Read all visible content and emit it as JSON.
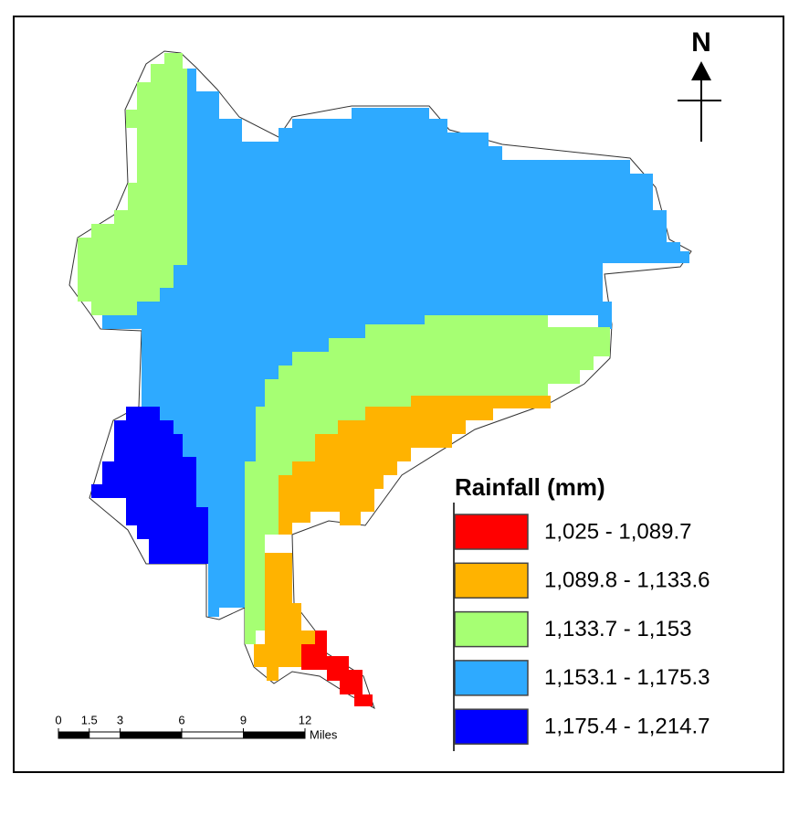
{
  "north_label": "N",
  "legend": {
    "title": "Rainfall (mm)",
    "items": [
      {
        "label": "1,025 - 1,089.7",
        "color": "#ff0000"
      },
      {
        "label": "1,089.8 - 1,133.6",
        "color": "#ffb300"
      },
      {
        "label": "1,133.7 - 1,153",
        "color": "#a6ff73"
      },
      {
        "label": "1,153.1 - 1,175.3",
        "color": "#2eaaff"
      },
      {
        "label": "1,175.4 - 1,214.7",
        "color": "#0000ff"
      }
    ]
  },
  "scale_bar": {
    "ticks": [
      0,
      1.5,
      3,
      6,
      9,
      12
    ],
    "unit": "Miles"
  }
}
